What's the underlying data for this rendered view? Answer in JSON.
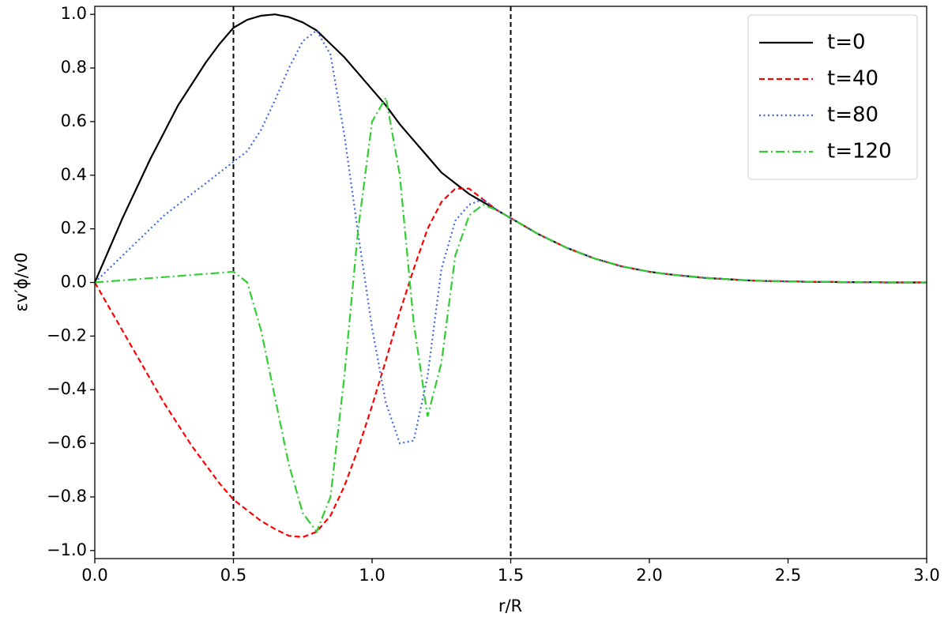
{
  "chart_data": {
    "type": "line",
    "xlabel": "r/R",
    "ylabel": "εv′ϕ/v0",
    "x": [
      0,
      0.05,
      0.1,
      0.15,
      0.2,
      0.25,
      0.3,
      0.35,
      0.4,
      0.45,
      0.5,
      0.55,
      0.6,
      0.65,
      0.7,
      0.75,
      0.8,
      0.85,
      0.9,
      0.95,
      1.0,
      1.05,
      1.1,
      1.15,
      1.2,
      1.25,
      1.3,
      1.35,
      1.4,
      1.45,
      1.5,
      1.55,
      1.6,
      1.65,
      1.7,
      1.75,
      1.8,
      1.85,
      1.9,
      1.95,
      2.0,
      2.05,
      2.1,
      2.15,
      2.2,
      2.25,
      2.3,
      2.35,
      2.4,
      2.45,
      2.5,
      2.55,
      2.6,
      2.65,
      2.7,
      2.75,
      2.8,
      2.85,
      2.9,
      2.95,
      3.0
    ],
    "series": [
      {
        "name": "t=0",
        "color": "#000000",
        "dash": "solid",
        "values": [
          0,
          0.12,
          0.24,
          0.35,
          0.46,
          0.56,
          0.66,
          0.74,
          0.82,
          0.89,
          0.95,
          0.98,
          0.995,
          1.0,
          0.99,
          0.97,
          0.94,
          0.89,
          0.84,
          0.78,
          0.72,
          0.66,
          0.59,
          0.53,
          0.47,
          0.41,
          0.37,
          0.33,
          0.3,
          0.27,
          0.24,
          0.21,
          0.18,
          0.155,
          0.13,
          0.11,
          0.09,
          0.075,
          0.06,
          0.05,
          0.04,
          0.033,
          0.027,
          0.022,
          0.017,
          0.014,
          0.011,
          0.008,
          0.006,
          0.005,
          0.004,
          0.003,
          0.002,
          0.002,
          0.001,
          0.001,
          0.001,
          0,
          0,
          0,
          0
        ]
      },
      {
        "name": "t=40",
        "color": "#ff0000",
        "dash": "dashed",
        "values": [
          0,
          -0.09,
          -0.18,
          -0.27,
          -0.36,
          -0.45,
          -0.53,
          -0.61,
          -0.68,
          -0.75,
          -0.81,
          -0.85,
          -0.89,
          -0.92,
          -0.945,
          -0.95,
          -0.93,
          -0.87,
          -0.76,
          -0.62,
          -0.46,
          -0.29,
          -0.11,
          0.05,
          0.2,
          0.3,
          0.35,
          0.35,
          0.31,
          0.27,
          0.24,
          0.21,
          0.18,
          0.155,
          0.13,
          0.11,
          0.09,
          0.075,
          0.06,
          0.05,
          0.04,
          0.033,
          0.027,
          0.022,
          0.017,
          0.014,
          0.011,
          0.008,
          0.006,
          0.005,
          0.004,
          0.003,
          0.002,
          0.002,
          0.001,
          0.001,
          0.001,
          0,
          0,
          0,
          0
        ]
      },
      {
        "name": "t=80",
        "color": "#4169e1",
        "dash": "dotted",
        "values": [
          0,
          0.05,
          0.1,
          0.15,
          0.2,
          0.25,
          0.29,
          0.33,
          0.37,
          0.41,
          0.45,
          0.49,
          0.57,
          0.68,
          0.8,
          0.9,
          0.94,
          0.85,
          0.55,
          0.18,
          -0.17,
          -0.45,
          -0.6,
          -0.59,
          -0.35,
          0.05,
          0.23,
          0.29,
          0.31,
          0.27,
          0.24,
          0.21,
          0.18,
          0.155,
          0.13,
          0.11,
          0.09,
          0.075,
          0.06,
          0.05,
          0.04,
          0.033,
          0.027,
          0.022,
          0.017,
          0.014,
          0.011,
          0.008,
          0.006,
          0.005,
          0.004,
          0.003,
          0.002,
          0.002,
          0.001,
          0.001,
          0.001,
          0,
          0,
          0,
          0
        ]
      },
      {
        "name": "t=120",
        "color": "#32cd32",
        "dash": "dashdot",
        "values": [
          0,
          0.004,
          0.008,
          0.012,
          0.016,
          0.02,
          0.024,
          0.028,
          0.032,
          0.036,
          0.04,
          0.0,
          -0.18,
          -0.43,
          -0.68,
          -0.86,
          -0.93,
          -0.8,
          -0.35,
          0.2,
          0.6,
          0.69,
          0.4,
          -0.15,
          -0.5,
          -0.3,
          0.1,
          0.25,
          0.29,
          0.27,
          0.24,
          0.21,
          0.18,
          0.155,
          0.13,
          0.11,
          0.09,
          0.075,
          0.06,
          0.05,
          0.04,
          0.033,
          0.027,
          0.022,
          0.017,
          0.014,
          0.011,
          0.008,
          0.006,
          0.005,
          0.004,
          0.003,
          0.002,
          0.002,
          0.001,
          0.001,
          0.001,
          0,
          0,
          0,
          0
        ]
      }
    ],
    "vlines": [
      0.5,
      1.5
    ],
    "xlim": [
      0,
      3
    ],
    "ylim": [
      -1.03,
      1.03
    ],
    "xticks": [
      {
        "value": 0,
        "label": "0.0"
      },
      {
        "value": 0.5,
        "label": "0.5"
      },
      {
        "value": 1,
        "label": "1.0"
      },
      {
        "value": 1.5,
        "label": "1.5"
      },
      {
        "value": 2,
        "label": "2.0"
      },
      {
        "value": 2.5,
        "label": "2.5"
      },
      {
        "value": 3,
        "label": "3.0"
      }
    ],
    "yticks": [
      {
        "value": -1,
        "label": "−1.0"
      },
      {
        "value": -0.8,
        "label": "−0.8"
      },
      {
        "value": -0.6,
        "label": "−0.6"
      },
      {
        "value": -0.4,
        "label": "−0.4"
      },
      {
        "value": -0.2,
        "label": "−0.2"
      },
      {
        "value": 0,
        "label": "0.0"
      },
      {
        "value": 0.2,
        "label": "0.2"
      },
      {
        "value": 0.4,
        "label": "0.4"
      },
      {
        "value": 0.6,
        "label": "0.6"
      },
      {
        "value": 0.8,
        "label": "0.8"
      },
      {
        "value": 1,
        "label": "1.0"
      }
    ],
    "legend": "upper right"
  }
}
